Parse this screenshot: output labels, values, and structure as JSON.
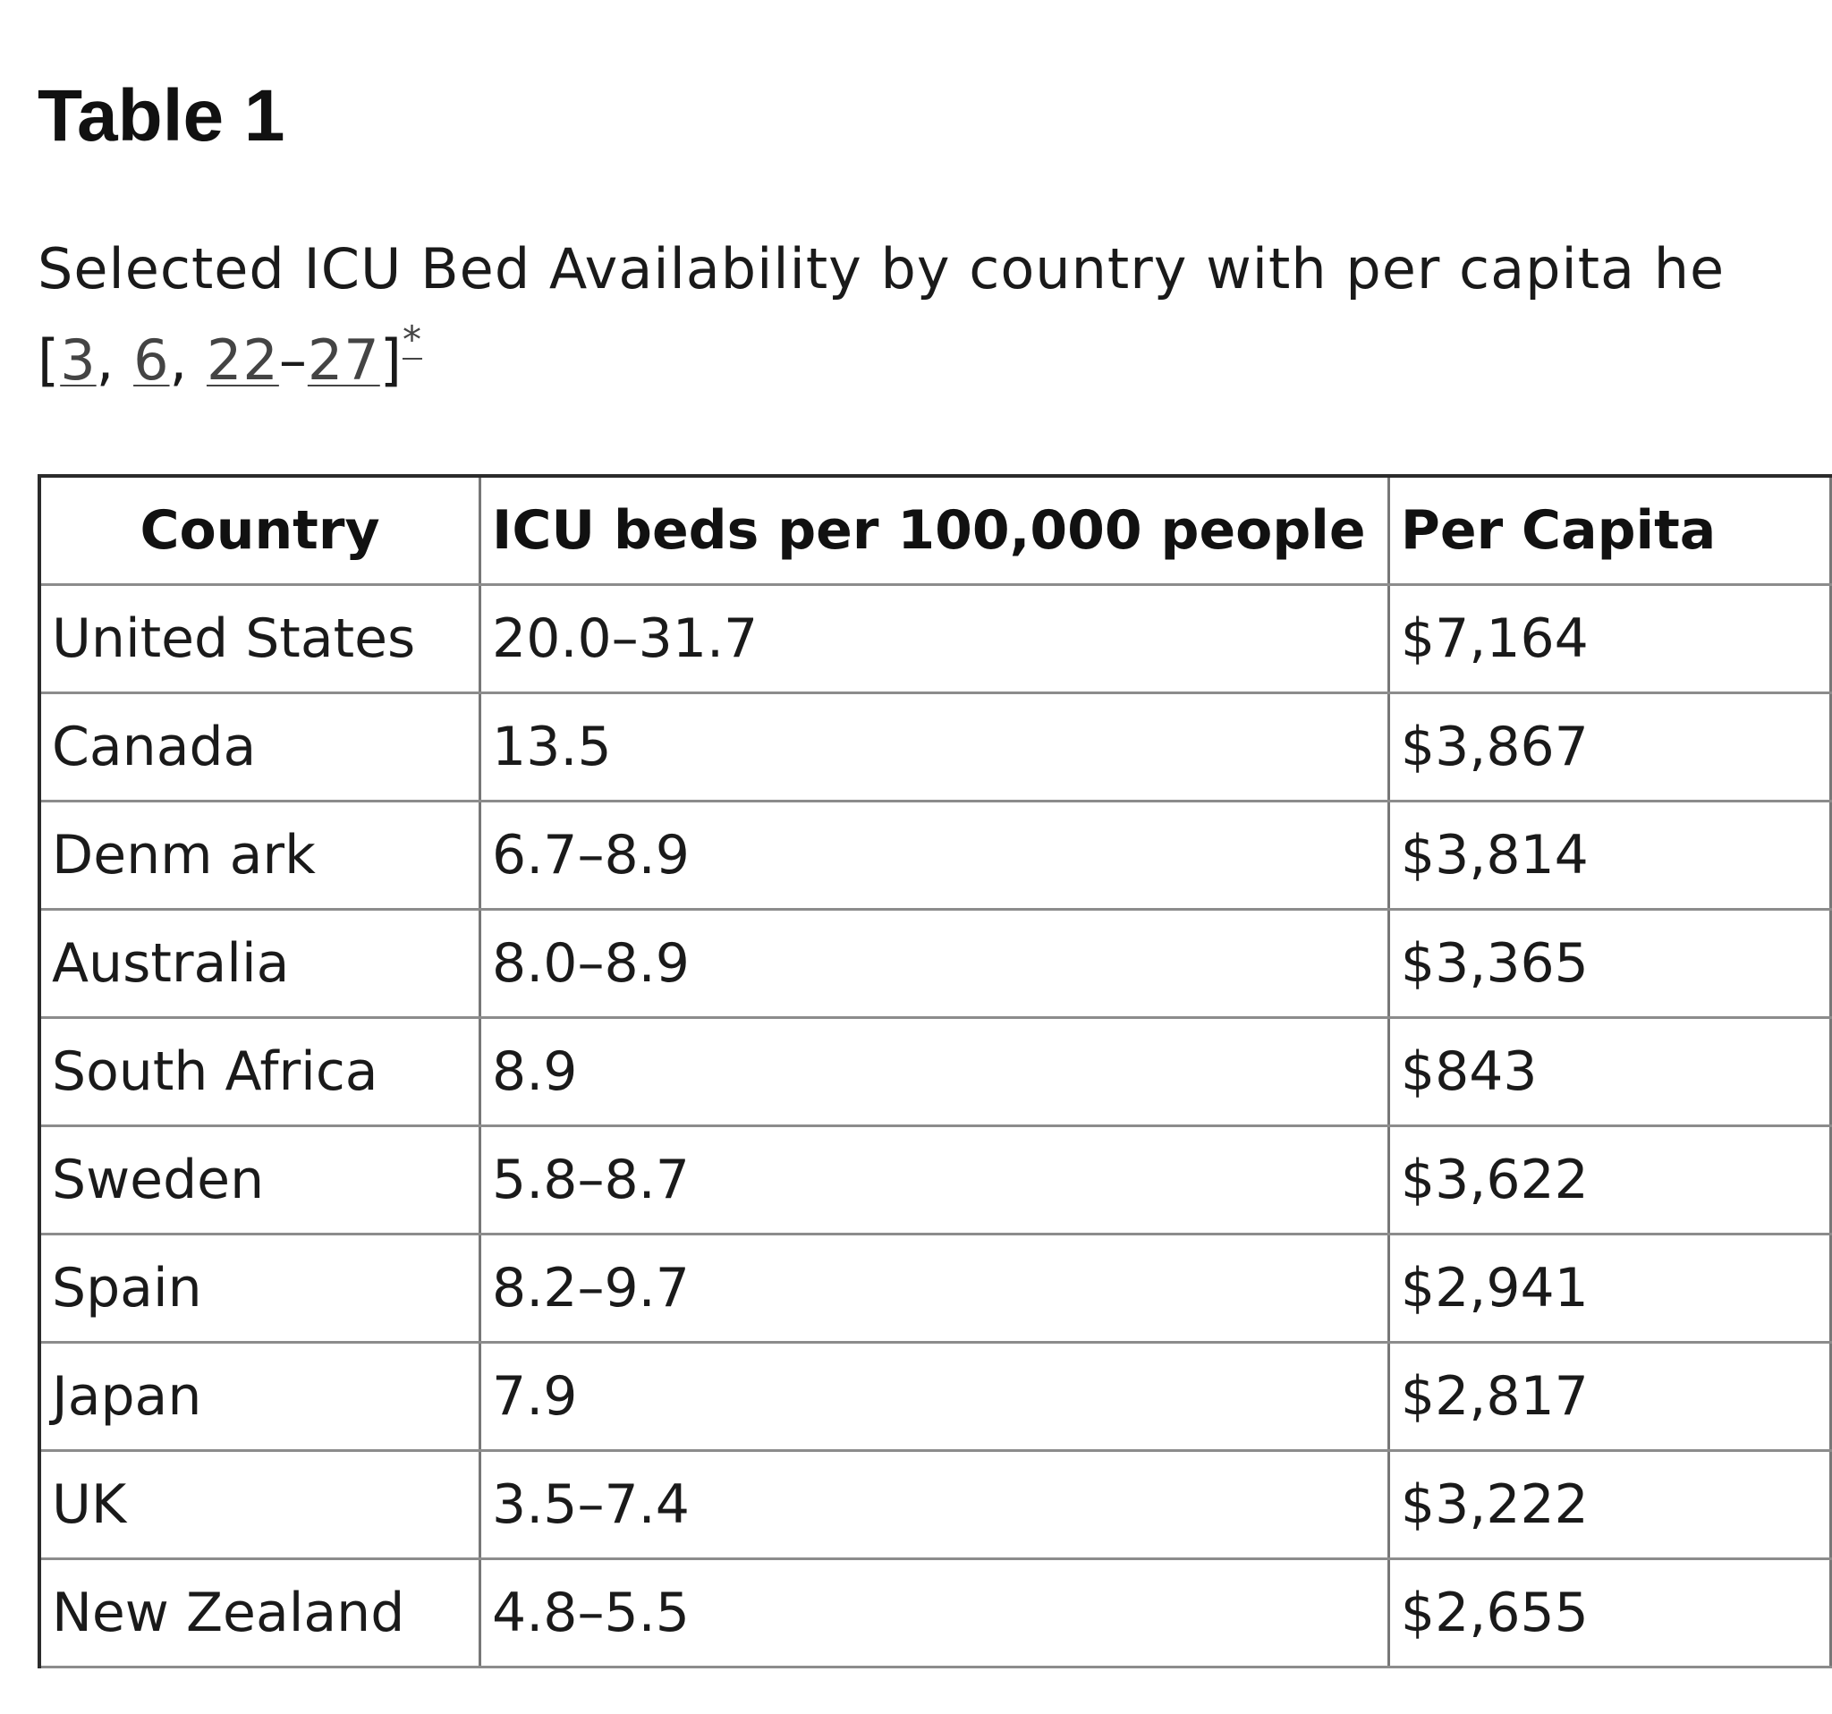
{
  "table_title": "Table 1",
  "caption": {
    "text": "Selected ICU Bed Availability by country with per capita he",
    "refs_open": "[",
    "refs": [
      {
        "label": "3",
        "sep": ", "
      },
      {
        "label": "6",
        "sep": ", "
      },
      {
        "label": "22",
        "sep": "–"
      },
      {
        "label": "27",
        "sep": ""
      }
    ],
    "refs_close": "]",
    "footnote_mark": "*"
  },
  "table": {
    "headers": [
      "Country",
      "ICU beds per 100,000 people",
      "Per Capita"
    ],
    "rows": [
      [
        "United States",
        "20.0–31.7",
        "$7,164"
      ],
      [
        "Canada",
        "13.5",
        "$3,867"
      ],
      [
        "Denm ark",
        "6.7–8.9",
        "$3,814"
      ],
      [
        "Australia",
        "8.0–8.9",
        "$3,365"
      ],
      [
        "South Africa",
        "8.9",
        "$843"
      ],
      [
        "Sweden",
        "5.8–8.7",
        "$3,622"
      ],
      [
        "Spain",
        "8.2–9.7",
        "$2,941"
      ],
      [
        "Japan",
        "7.9",
        "$2,817"
      ],
      [
        "UK",
        "3.5–7.4",
        "$3,222"
      ],
      [
        "New Zealand",
        "4.8–5.5",
        "$2,655"
      ]
    ]
  }
}
